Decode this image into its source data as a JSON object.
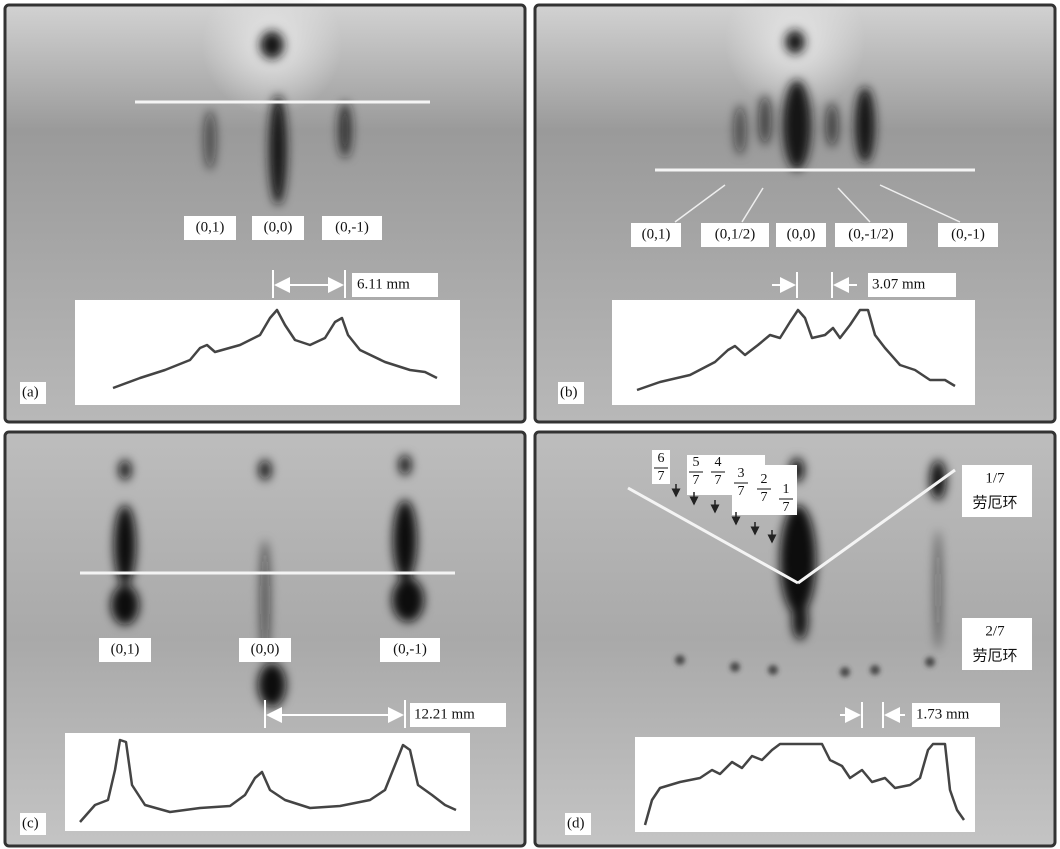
{
  "panels": [
    {
      "label": "(a)",
      "spots": [
        "(0,1)",
        "(0,0)",
        "(0,-1)"
      ],
      "measurement": "6.11 mm"
    },
    {
      "label": "(b)",
      "spots": [
        "(0,1)",
        "(0,1/2)",
        "(0,0)",
        "(0,-1/2)",
        "(0,-1)"
      ],
      "measurement": "3.07 mm"
    },
    {
      "label": "(c)",
      "spots": [
        "(0,1)",
        "(0,0)",
        "(0,-1)"
      ],
      "measurement": "12.21 mm"
    },
    {
      "label": "(d)",
      "measurement": "1.73 mm",
      "fractions": [
        {
          "numerator": "6",
          "denominator": "7"
        },
        {
          "numerator": "5",
          "denominator": "7"
        },
        {
          "numerator": "4",
          "denominator": "7"
        },
        {
          "numerator": "3",
          "denominator": "7"
        },
        {
          "numerator": "2",
          "denominator": "7"
        },
        {
          "numerator": "1",
          "denominator": "7"
        }
      ],
      "rings": [
        {
          "order": "1/7",
          "name": "劳厄环"
        },
        {
          "order": "2/7",
          "name": "劳厄环"
        }
      ]
    }
  ]
}
